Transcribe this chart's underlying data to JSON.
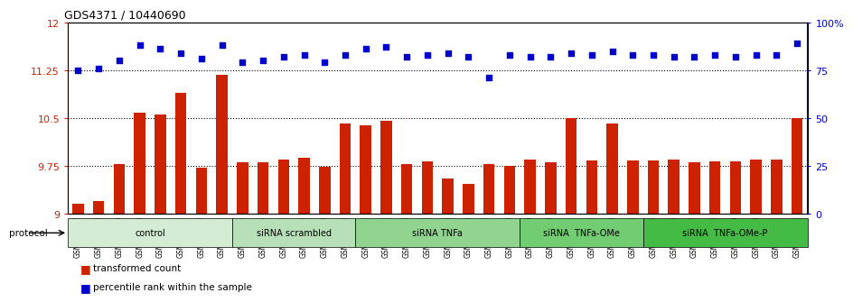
{
  "title": "GDS4371 / 10440690",
  "samples": [
    "GSM790907",
    "GSM790908",
    "GSM790909",
    "GSM790910",
    "GSM790911",
    "GSM790912",
    "GSM790913",
    "GSM790914",
    "GSM790915",
    "GSM790916",
    "GSM790917",
    "GSM790918",
    "GSM790919",
    "GSM790920",
    "GSM790921",
    "GSM790922",
    "GSM790923",
    "GSM790924",
    "GSM790925",
    "GSM790926",
    "GSM790927",
    "GSM790928",
    "GSM790929",
    "GSM790930",
    "GSM790931",
    "GSM790932",
    "GSM790933",
    "GSM790934",
    "GSM790935",
    "GSM790936",
    "GSM790937",
    "GSM790938",
    "GSM790939",
    "GSM790940",
    "GSM790941",
    "GSM790942"
  ],
  "bar_values": [
    9.15,
    9.2,
    9.78,
    10.58,
    10.55,
    10.9,
    9.72,
    11.18,
    9.8,
    9.8,
    9.85,
    9.88,
    9.73,
    10.42,
    10.38,
    10.45,
    9.78,
    9.82,
    9.55,
    9.47,
    9.78,
    9.75,
    9.85,
    9.8,
    10.5,
    9.83,
    10.42,
    9.83,
    9.83,
    9.85,
    9.8,
    9.82,
    9.82,
    9.85,
    9.85,
    10.5
  ],
  "percentile_values": [
    75,
    76,
    80,
    88,
    86,
    84,
    81,
    88,
    79,
    80,
    82,
    83,
    79,
    83,
    86,
    87,
    82,
    83,
    84,
    82,
    71,
    83,
    82,
    82,
    84,
    83,
    85,
    83,
    83,
    82,
    82,
    83,
    82,
    83,
    83,
    89
  ],
  "groups": [
    {
      "label": "control",
      "start": 0,
      "end": 8,
      "color": "#d4ecd4"
    },
    {
      "label": "siRNA scrambled",
      "start": 8,
      "end": 14,
      "color": "#b8e0b8"
    },
    {
      "label": "siRNA TNFa",
      "start": 14,
      "end": 22,
      "color": "#90d490"
    },
    {
      "label": "siRNA  TNFa-OMe",
      "start": 22,
      "end": 28,
      "color": "#72cc72"
    },
    {
      "label": "siRNA  TNFa-OMe-P",
      "start": 28,
      "end": 36,
      "color": "#44bb44"
    }
  ],
  "ylim_left": [
    9,
    12
  ],
  "ylim_right": [
    0,
    100
  ],
  "yticks_left": [
    9,
    9.75,
    10.5,
    11.25,
    12
  ],
  "yticks_right": [
    0,
    25,
    50,
    75,
    100
  ],
  "bar_color": "#cc2200",
  "dot_color": "#0000cc",
  "plot_bg": "#ffffff",
  "legend_bar": "transformed count",
  "legend_dot": "percentile rank within the sample"
}
